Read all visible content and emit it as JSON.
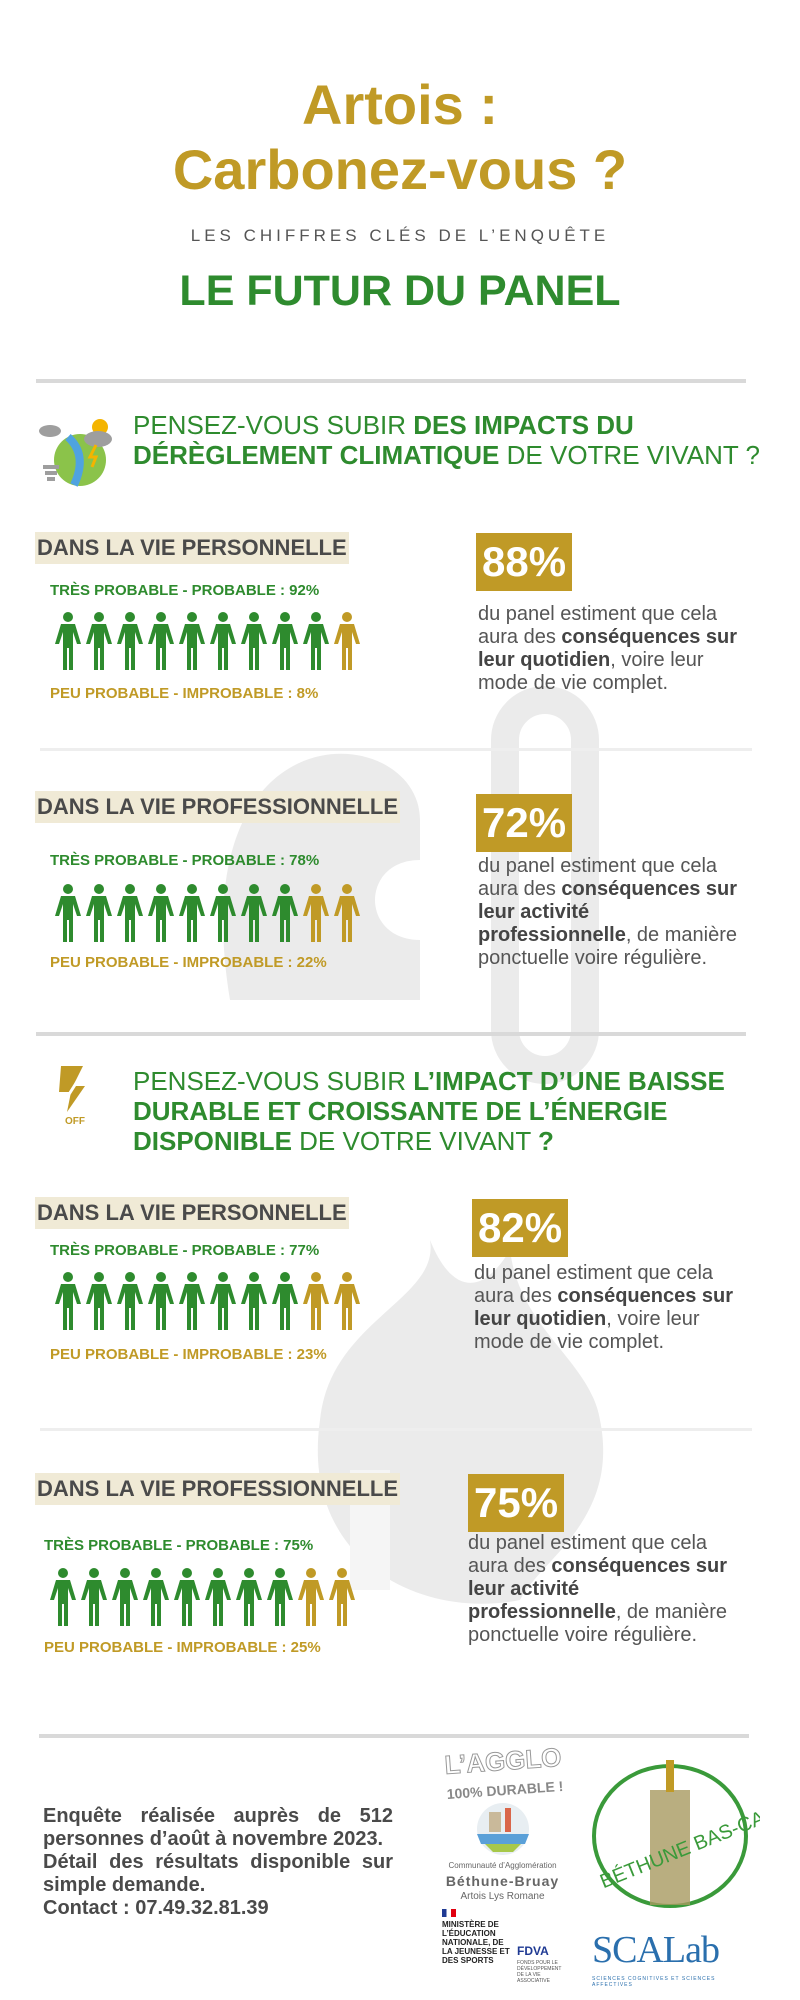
{
  "header": {
    "title_line1": "Artois :",
    "title_line2": "Carbonez-vous ?",
    "kicker": "LES CHIFFRES CLÉS DE L’ENQUÊTE",
    "panel": "LE FUTUR DU PANEL"
  },
  "colors": {
    "green": "#2E8B2E",
    "gold": "#C09A26",
    "label_bg": "#F0EAD6"
  },
  "sections": [
    {
      "icon": "climate-weather-icon",
      "q_pre": "PENSEZ-VOUS SUBIR ",
      "q_bold1": "DES IMPACTS DU DÉRÈGLEMENT CLIMATIQUE",
      "q_post": " DE VOTRE VIVANT ?",
      "blocks": [
        {
          "label": "DANS LA VIE PERSONNELLE",
          "likely": "TRÈS PROBABLE - PROBABLE : 92%",
          "unlikely": "PEU PROBABLE - IMPROBABLE : 8%",
          "likely_pct": 92,
          "green_people": 9,
          "gold_people": 1,
          "pct": "88%",
          "d1": "du panel estiment que cela aura des ",
          "d_bold": "conséquences sur leur quotidien",
          "d2": ", voire leur mode de vie complet."
        },
        {
          "label": "DANS LA VIE PROFESSIONNELLE",
          "likely": "TRÈS PROBABLE - PROBABLE : 78%",
          "unlikely": "PEU PROBABLE - IMPROBABLE : 22%",
          "likely_pct": 78,
          "green_people": 8,
          "gold_people": 2,
          "pct": "72%",
          "d1": "du panel estiment que cela aura des ",
          "d_bold": "conséquences sur leur activité professionnelle",
          "d2": ", de manière ponctuelle voire régulière."
        }
      ]
    },
    {
      "icon": "power-off-icon",
      "icon_text": "OFF",
      "q_pre": "PENSEZ-VOUS SUBIR ",
      "q_bold1": "L’IMPACT D’UNE BAISSE DURABLE ET CROISSANTE  DE L’ÉNERGIE DISPONIBLE",
      "q_post": " DE VOTRE VIVANT ",
      "q_end": "?",
      "blocks": [
        {
          "label": "DANS LA VIE PERSONNELLE",
          "likely": "TRÈS PROBABLE - PROBABLE : 77%",
          "unlikely": "PEU PROBABLE - IMPROBABLE : 23%",
          "likely_pct": 77,
          "green_people": 8,
          "gold_people": 2,
          "pct": "82%",
          "d1": "du panel estiment que cela aura des ",
          "d_bold": "conséquences sur leur quotidien",
          "d2": ", voire leur mode de vie complet."
        },
        {
          "label": "DANS LA VIE PROFESSIONNELLE",
          "likely": "TRÈS PROBABLE - PROBABLE : 75%",
          "unlikely": "PEU PROBABLE - IMPROBABLE : 25%",
          "likely_pct": 75,
          "green_people": 8,
          "gold_people": 2,
          "pct": "75%",
          "d1": "du panel estiment que cela aura des ",
          "d_bold": "conséquences sur leur activité professionnelle",
          "d2": ", de manière ponctuelle voire régulière."
        }
      ]
    }
  ],
  "footer": {
    "line1": "Enquête réalisée auprès de 512 personnes d’août à novembre 2023.",
    "line2": "Détail des résultats disponible sur simple demande.",
    "line3": "Contact : 07.49.32.81.39"
  },
  "logos": {
    "agglo_a": "L’AGGLO",
    "agglo_b": "100% DURABLE !",
    "ca_1": "Communauté d’Agglomération",
    "ca_2": "Béthune-Bruay",
    "ca_3": "Artois Lys Romane",
    "ministere": "MINISTÈRE DE L’ÉDUCATION NATIONALE, DE LA JEUNESSE ET DES SPORTS",
    "fdva": "FDVA",
    "fdva_sub": "FONDS POUR LE DÉVELOPPEMENT DE LA VIE ASSOCIATIVE",
    "bethune": "BÉTHUNE BAS-CARBONE",
    "scalab": "SCALab",
    "scalab_sub": "SCIENCES COGNITIVES ET SCIENCES AFFECTIVES"
  }
}
